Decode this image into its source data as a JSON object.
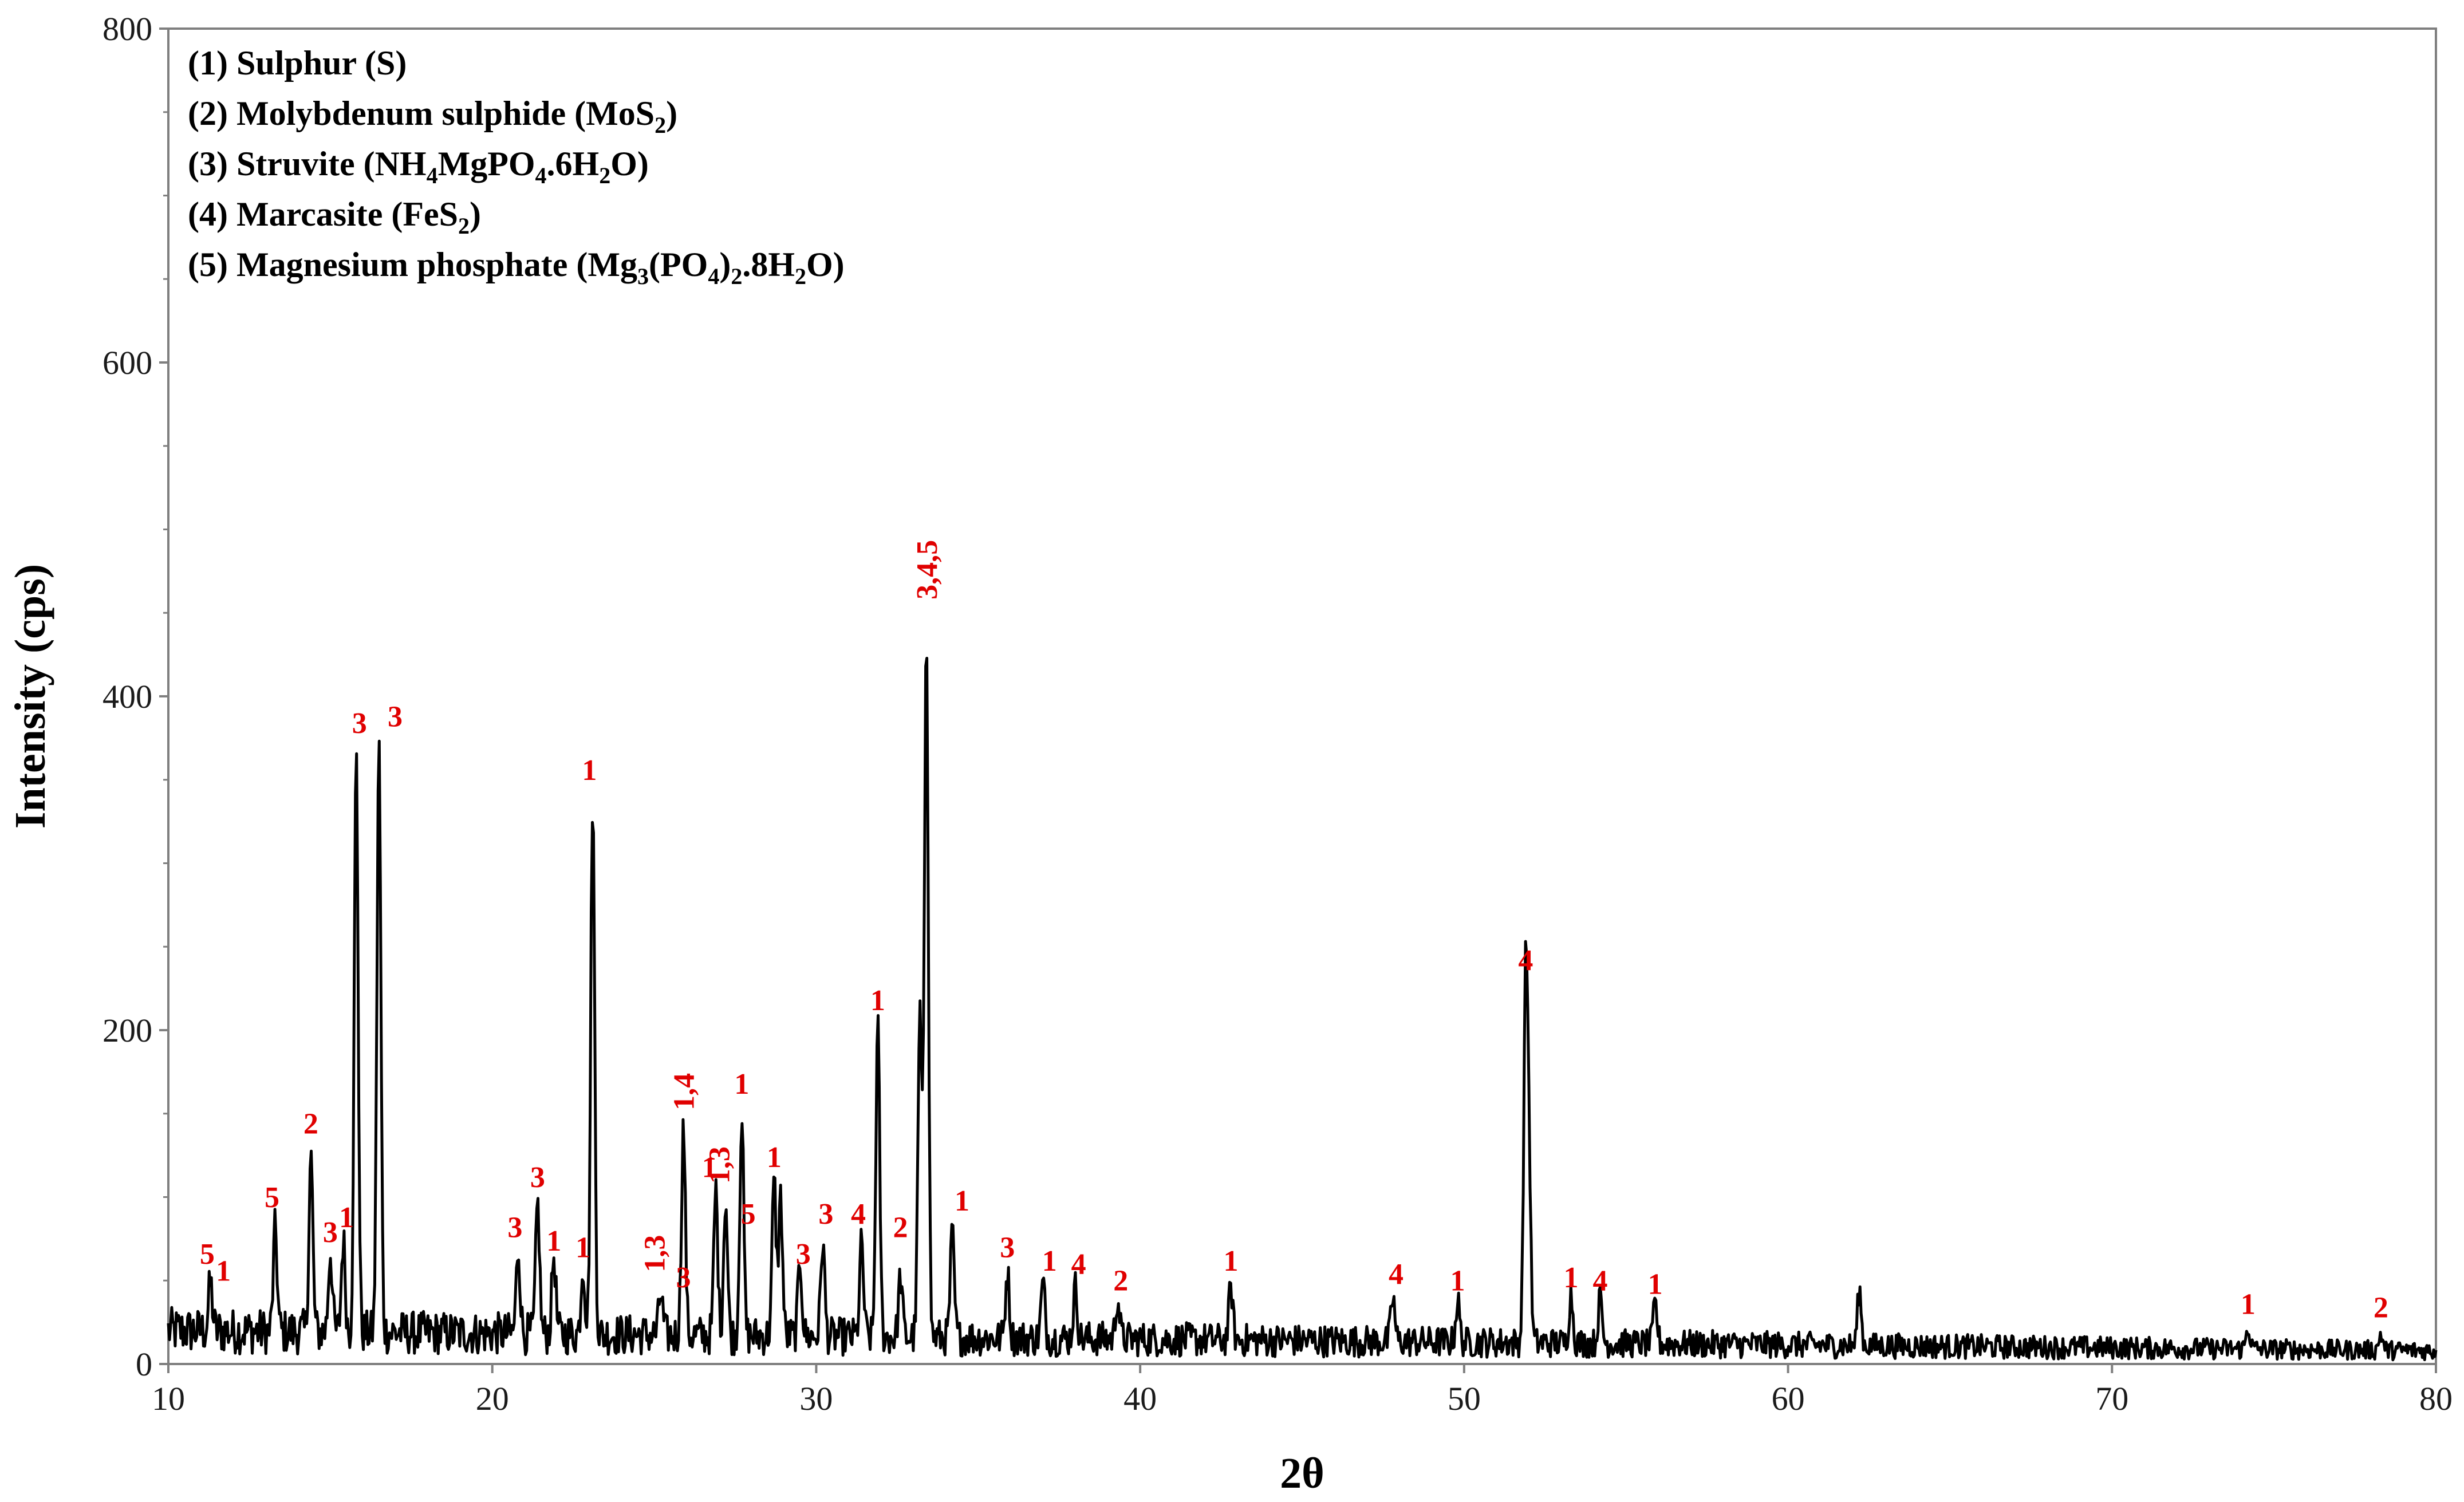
{
  "chart_data": {
    "type": "line",
    "title": "",
    "xlabel": "2θ",
    "ylabel": "Intensity (cps)",
    "xlim": [
      10,
      80
    ],
    "ylim": [
      0,
      800
    ],
    "x_ticks": [
      "10",
      "20",
      "30",
      "40",
      "50",
      "60",
      "70",
      "80"
    ],
    "y_ticks": [
      "0",
      "200",
      "400",
      "600",
      "800"
    ],
    "grid": false,
    "legend_position": "top-left",
    "line_color": "#000000",
    "annotation_color": "#e00000",
    "legend": [
      {
        "id": "(1)",
        "name": "Sulphur (S)",
        "parts": [
          {
            "t": "(1) Sulphur (S)"
          }
        ]
      },
      {
        "id": "(2)",
        "name": "Molybdenum sulphide (MoS2)",
        "parts": [
          {
            "t": "(2) Molybdenum sulphide (MoS"
          },
          {
            "t": "2",
            "sub": true
          },
          {
            "t": ")"
          }
        ]
      },
      {
        "id": "(3)",
        "name": "Struvite (NH4MgPO4.6H2O)",
        "parts": [
          {
            "t": "(3) Struvite (NH"
          },
          {
            "t": "4",
            "sub": true
          },
          {
            "t": "MgPO"
          },
          {
            "t": "4",
            "sub": true
          },
          {
            "t": ".6H"
          },
          {
            "t": "2",
            "sub": true
          },
          {
            "t": "O)"
          }
        ]
      },
      {
        "id": "(4)",
        "name": "Marcasite (FeS2)",
        "parts": [
          {
            "t": "(4) Marcasite (FeS"
          },
          {
            "t": "2",
            "sub": true
          },
          {
            "t": ")"
          }
        ]
      },
      {
        "id": "(5)",
        "name": "Magnesium phosphate (Mg3(PO4)2.8H2O)",
        "parts": [
          {
            "t": "(5) Magnesium phosphate (Mg"
          },
          {
            "t": "3",
            "sub": true
          },
          {
            "t": "(PO"
          },
          {
            "t": "4",
            "sub": true
          },
          {
            "t": ")"
          },
          {
            "t": "2",
            "sub": true
          },
          {
            "t": ".8H"
          },
          {
            "t": "2",
            "sub": true
          },
          {
            "t": "O)"
          }
        ]
      }
    ],
    "background": {
      "base": 20,
      "noise": 14
    },
    "peaks": [
      {
        "x": 11.3,
        "y": 48
      },
      {
        "x": 13.3,
        "y": 80
      },
      {
        "x": 14.4,
        "y": 125
      },
      {
        "x": 15.0,
        "y": 68
      },
      {
        "x": 15.4,
        "y": 74
      },
      {
        "x": 15.8,
        "y": 365
      },
      {
        "x": 16.5,
        "y": 372
      },
      {
        "x": 20.8,
        "y": 70
      },
      {
        "x": 21.4,
        "y": 96
      },
      {
        "x": 21.9,
        "y": 65
      },
      {
        "x": 22.8,
        "y": 60
      },
      {
        "x": 23.1,
        "y": 340
      },
      {
        "x": 25.2,
        "y": 42
      },
      {
        "x": 25.9,
        "y": 142
      },
      {
        "x": 26.9,
        "y": 105
      },
      {
        "x": 27.2,
        "y": 100
      },
      {
        "x": 27.7,
        "y": 150
      },
      {
        "x": 28.7,
        "y": 110
      },
      {
        "x": 28.9,
        "y": 100
      },
      {
        "x": 29.5,
        "y": 62
      },
      {
        "x": 30.2,
        "y": 74
      },
      {
        "x": 31.4,
        "y": 72
      },
      {
        "x": 31.9,
        "y": 202
      },
      {
        "x": 32.6,
        "y": 52
      },
      {
        "x": 33.4,
        "y": 445
      },
      {
        "x": 33.2,
        "y": 210
      },
      {
        "x": 34.2,
        "y": 78
      },
      {
        "x": 35.9,
        "y": 55
      },
      {
        "x": 37.0,
        "y": 48
      },
      {
        "x": 38.0,
        "y": 46
      },
      {
        "x": 39.3,
        "y": 40
      },
      {
        "x": 42.8,
        "y": 46
      },
      {
        "x": 47.8,
        "y": 40
      },
      {
        "x": 49.8,
        "y": 38
      },
      {
        "x": 51.9,
        "y": 224
      },
      {
        "x": 52.0,
        "y": 112
      },
      {
        "x": 53.3,
        "y": 42
      },
      {
        "x": 54.2,
        "y": 40
      },
      {
        "x": 55.9,
        "y": 36
      },
      {
        "x": 62.2,
        "y": 44
      },
      {
        "x": 74.2,
        "y": 22
      },
      {
        "x": 78.3,
        "y": 18
      }
    ],
    "annotations": [
      {
        "text": "5",
        "x": 11.2,
        "y": 60
      },
      {
        "text": "1",
        "x": 11.7,
        "y": 50
      },
      {
        "text": "5",
        "x": 13.2,
        "y": 94
      },
      {
        "text": "2",
        "x": 14.4,
        "y": 138
      },
      {
        "text": "3",
        "x": 15.0,
        "y": 73
      },
      {
        "text": "1",
        "x": 15.5,
        "y": 82
      },
      {
        "text": "3",
        "x": 15.9,
        "y": 378
      },
      {
        "text": "3",
        "x": 17.0,
        "y": 382
      },
      {
        "text": "3",
        "x": 20.7,
        "y": 76
      },
      {
        "text": "3",
        "x": 21.4,
        "y": 106
      },
      {
        "text": "1",
        "x": 21.9,
        "y": 68
      },
      {
        "text": "1",
        "x": 22.8,
        "y": 64
      },
      {
        "text": "1",
        "x": 23.0,
        "y": 350
      },
      {
        "text": "1,3",
        "x": 25.0,
        "y": 55,
        "rotate": true
      },
      {
        "text": "3",
        "x": 25.9,
        "y": 46
      },
      {
        "text": "1,4",
        "x": 25.9,
        "y": 152,
        "rotate": true
      },
      {
        "text": "1",
        "x": 26.7,
        "y": 112
      },
      {
        "text": "1,3",
        "x": 27.0,
        "y": 108,
        "rotate": true
      },
      {
        "text": "5",
        "x": 27.9,
        "y": 84
      },
      {
        "text": "1",
        "x": 27.7,
        "y": 162
      },
      {
        "text": "1",
        "x": 28.7,
        "y": 118
      },
      {
        "text": "3",
        "x": 29.6,
        "y": 60
      },
      {
        "text": "3",
        "x": 30.3,
        "y": 84
      },
      {
        "text": "4",
        "x": 31.3,
        "y": 84
      },
      {
        "text": "2",
        "x": 32.6,
        "y": 76
      },
      {
        "text": "1",
        "x": 31.9,
        "y": 212
      },
      {
        "text": "3,4,5",
        "x": 33.4,
        "y": 458,
        "rotate": true
      },
      {
        "text": "1",
        "x": 34.5,
        "y": 92
      },
      {
        "text": "3",
        "x": 35.9,
        "y": 64
      },
      {
        "text": "1",
        "x": 37.2,
        "y": 56
      },
      {
        "text": "4",
        "x": 38.1,
        "y": 54
      },
      {
        "text": "2",
        "x": 39.4,
        "y": 44
      },
      {
        "text": "1",
        "x": 42.8,
        "y": 56
      },
      {
        "text": "4",
        "x": 47.9,
        "y": 48
      },
      {
        "text": "1",
        "x": 49.8,
        "y": 44
      },
      {
        "text": "4",
        "x": 51.9,
        "y": 236
      },
      {
        "text": "1",
        "x": 53.3,
        "y": 46
      },
      {
        "text": "4",
        "x": 54.2,
        "y": 44
      },
      {
        "text": "1",
        "x": 55.9,
        "y": 42
      },
      {
        "text": "1",
        "x": 74.2,
        "y": 30
      },
      {
        "text": "2",
        "x": 78.3,
        "y": 28
      }
    ]
  }
}
